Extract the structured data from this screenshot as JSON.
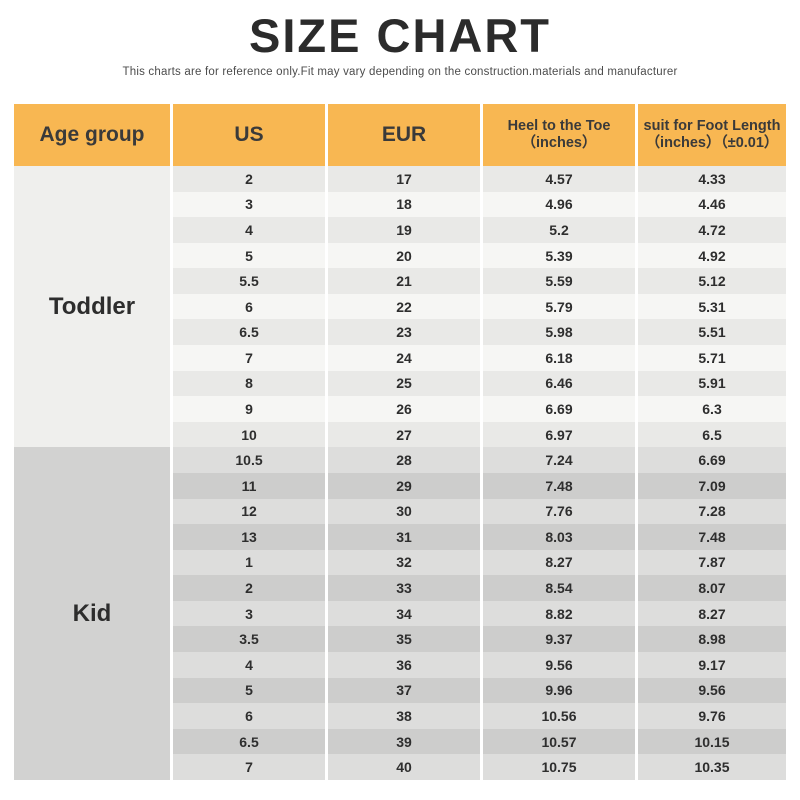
{
  "page": {
    "title": "SIZE CHART",
    "subtitle": "This charts are for reference only.Fit may vary depending on the construction.materials and manufacturer"
  },
  "table": {
    "columns": [
      {
        "label": "Age group",
        "sub": ""
      },
      {
        "label": "US",
        "sub": ""
      },
      {
        "label": "EUR",
        "sub": ""
      },
      {
        "label": "Heel to the Toe",
        "sub": "（inches）"
      },
      {
        "label": "suit for Foot Length",
        "sub": "（inches）（±0.01）"
      }
    ],
    "groups": [
      {
        "name": "Toddler",
        "rows": [
          [
            "2",
            "17",
            "4.57",
            "4.33"
          ],
          [
            "3",
            "18",
            "4.96",
            "4.46"
          ],
          [
            "4",
            "19",
            "5.2",
            "4.72"
          ],
          [
            "5",
            "20",
            "5.39",
            "4.92"
          ],
          [
            "5.5",
            "21",
            "5.59",
            "5.12"
          ],
          [
            "6",
            "22",
            "5.79",
            "5.31"
          ],
          [
            "6.5",
            "23",
            "5.98",
            "5.51"
          ],
          [
            "7",
            "24",
            "6.18",
            "5.71"
          ],
          [
            "8",
            "25",
            "6.46",
            "5.91"
          ],
          [
            "9",
            "26",
            "6.69",
            "6.3"
          ],
          [
            "10",
            "27",
            "6.97",
            "6.5"
          ]
        ]
      },
      {
        "name": "Kid",
        "rows": [
          [
            "10.5",
            "28",
            "7.24",
            "6.69"
          ],
          [
            "11",
            "29",
            "7.48",
            "7.09"
          ],
          [
            "12",
            "30",
            "7.76",
            "7.28"
          ],
          [
            "13",
            "31",
            "8.03",
            "7.48"
          ],
          [
            "1",
            "32",
            "8.27",
            "7.87"
          ],
          [
            "2",
            "33",
            "8.54",
            "8.07"
          ],
          [
            "3",
            "34",
            "8.82",
            "8.27"
          ],
          [
            "3.5",
            "35",
            "9.37",
            "8.98"
          ],
          [
            "4",
            "36",
            "9.56",
            "9.17"
          ],
          [
            "5",
            "37",
            "9.96",
            "9.56"
          ],
          [
            "6",
            "38",
            "10.56",
            "9.76"
          ],
          [
            "6.5",
            "39",
            "10.57",
            "10.15"
          ],
          [
            "7",
            "40",
            "10.75",
            "10.35"
          ]
        ]
      }
    ]
  },
  "colors": {
    "header_bg": "#F8B752",
    "header_text": "#3A3A3A",
    "text_dark": "#2E2E2E",
    "toddler_age_bg": "#EFEFED",
    "toddler_row_dark": "#E9E9E7",
    "toddler_row_light": "#F6F6F4",
    "kid_age_bg": "#D2D2D1",
    "kid_row_light": "#DDDDDC",
    "kid_row_dark": "#CDCDCC"
  },
  "chart_data": {
    "type": "table",
    "title": "SIZE CHART",
    "subtitle": "This charts are for reference only.Fit may vary depending on the construction.materials and manufacturer",
    "columns": [
      "Age group",
      "US",
      "EUR",
      "Heel to the Toe (inches)",
      "suit for Foot Length (inches) (±0.01)"
    ],
    "rows": [
      [
        "Toddler",
        "2",
        17,
        4.57,
        4.33
      ],
      [
        "Toddler",
        "3",
        18,
        4.96,
        4.46
      ],
      [
        "Toddler",
        "4",
        19,
        5.2,
        4.72
      ],
      [
        "Toddler",
        "5",
        20,
        5.39,
        4.92
      ],
      [
        "Toddler",
        "5.5",
        21,
        5.59,
        5.12
      ],
      [
        "Toddler",
        "6",
        22,
        5.79,
        5.31
      ],
      [
        "Toddler",
        "6.5",
        23,
        5.98,
        5.51
      ],
      [
        "Toddler",
        "7",
        24,
        6.18,
        5.71
      ],
      [
        "Toddler",
        "8",
        25,
        6.46,
        5.91
      ],
      [
        "Toddler",
        "9",
        26,
        6.69,
        6.3
      ],
      [
        "Toddler",
        "10",
        27,
        6.97,
        6.5
      ],
      [
        "Kid",
        "10.5",
        28,
        7.24,
        6.69
      ],
      [
        "Kid",
        "11",
        29,
        7.48,
        7.09
      ],
      [
        "Kid",
        "12",
        30,
        7.76,
        7.28
      ],
      [
        "Kid",
        "13",
        31,
        8.03,
        7.48
      ],
      [
        "Kid",
        "1",
        32,
        8.27,
        7.87
      ],
      [
        "Kid",
        "2",
        33,
        8.54,
        8.07
      ],
      [
        "Kid",
        "3",
        34,
        8.82,
        8.27
      ],
      [
        "Kid",
        "3.5",
        35,
        9.37,
        8.98
      ],
      [
        "Kid",
        "4",
        36,
        9.56,
        9.17
      ],
      [
        "Kid",
        "5",
        37,
        9.96,
        9.56
      ],
      [
        "Kid",
        "6",
        38,
        10.56,
        9.76
      ],
      [
        "Kid",
        "6.5",
        39,
        10.57,
        10.15
      ],
      [
        "Kid",
        "7",
        40,
        10.75,
        10.35
      ]
    ]
  }
}
